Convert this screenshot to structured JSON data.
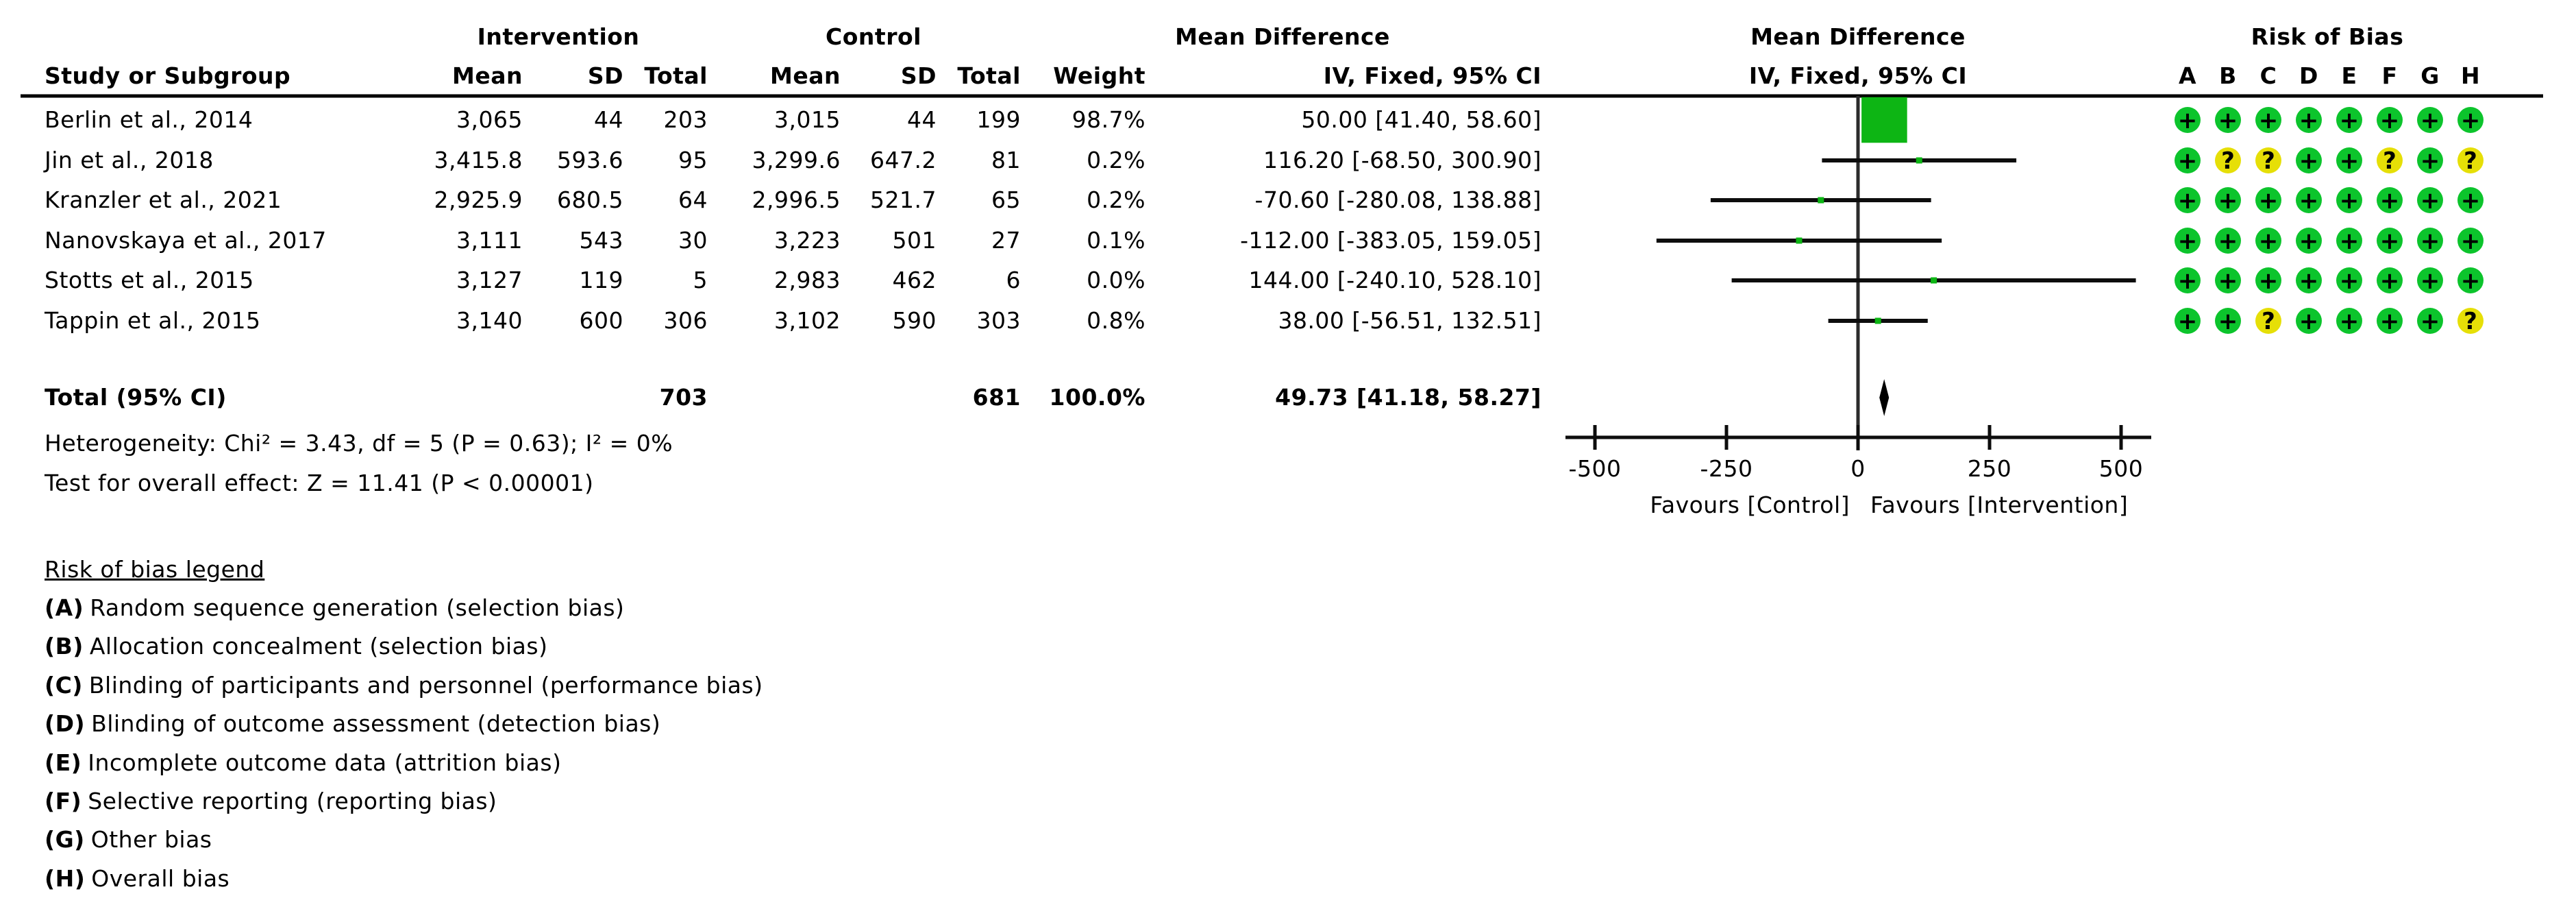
{
  "colors": {
    "plot_green": "#0db514",
    "rob_green": "#0cc42c",
    "rob_yellow": "#e6df07",
    "line_black": "#0d0d0d",
    "zero_line_gray": "#2b2b2b",
    "text": "#000000"
  },
  "table": {
    "group_headers": [
      "Intervention",
      "Control",
      "Mean Difference",
      "Mean Difference",
      "Risk of Bias"
    ],
    "study_col_header": "Study or Subgroup",
    "col_header_labels": [
      "Mean",
      "SD",
      "Total",
      "Mean",
      "SD",
      "Total",
      "Weight",
      "IV, Fixed, 95% CI"
    ],
    "plot_col_header": "IV, Fixed, 95% CI",
    "rob_letters": [
      "A",
      "B",
      "C",
      "D",
      "E",
      "F",
      "G",
      "H"
    ],
    "rows": [
      {
        "name": "Berlin et al., 2014",
        "cells": [
          "3,065",
          "44",
          "203",
          "3,015",
          "44",
          "199",
          "98.7%",
          "50.00 [41.40, 58.60]"
        ],
        "rob": [
          "+",
          "+",
          "+",
          "+",
          "+",
          "+",
          "+",
          "+"
        ]
      },
      {
        "name": "Jin et al., 2018",
        "cells": [
          "3,415.8",
          "593.6",
          "95",
          "3,299.6",
          "647.2",
          "81",
          "0.2%",
          "116.20 [-68.50, 300.90]"
        ],
        "rob": [
          "+",
          "?",
          "?",
          "+",
          "+",
          "?",
          "+",
          "?"
        ]
      },
      {
        "name": "Kranzler et al., 2021",
        "cells": [
          "2,925.9",
          "680.5",
          "64",
          "2,996.5",
          "521.7",
          "65",
          "0.2%",
          "-70.60 [-280.08, 138.88]"
        ],
        "rob": [
          "+",
          "+",
          "+",
          "+",
          "+",
          "+",
          "+",
          "+"
        ]
      },
      {
        "name": "Nanovskaya et al., 2017",
        "cells": [
          "3,111",
          "543",
          "30",
          "3,223",
          "501",
          "27",
          "0.1%",
          "-112.00 [-383.05, 159.05]"
        ],
        "rob": [
          "+",
          "+",
          "+",
          "+",
          "+",
          "+",
          "+",
          "+"
        ]
      },
      {
        "name": "Stotts et al., 2015",
        "cells": [
          "3,127",
          "119",
          "5",
          "2,983",
          "462",
          "6",
          "0.0%",
          "144.00 [-240.10, 528.10]"
        ],
        "rob": [
          "+",
          "+",
          "+",
          "+",
          "+",
          "+",
          "+",
          "+"
        ]
      },
      {
        "name": "Tappin et al., 2015",
        "cells": [
          "3,140",
          "600",
          "306",
          "3,102",
          "590",
          "303",
          "0.8%",
          "38.00 [-56.51, 132.51]"
        ],
        "rob": [
          "+",
          "+",
          "?",
          "+",
          "+",
          "+",
          "+",
          "?"
        ]
      }
    ],
    "total_row": {
      "label": "Total (95% CI)",
      "i_total": "703",
      "c_total": "681",
      "weight": "100.0%",
      "ci_text": "49.73 [41.18, 58.27]"
    }
  },
  "footnotes": {
    "heterogeneity": "Heterogeneity: Chi² = 3.43, df = 5 (P = 0.63); I² = 0%",
    "overall_effect": "Test for overall effect: Z = 11.41 (P < 0.00001)"
  },
  "axis": {
    "tick_labels": [
      "-500",
      "-250",
      "0",
      "250",
      "500"
    ],
    "favours_left": "Favours [Control]",
    "favours_right": "Favours [Intervention]"
  },
  "legend": {
    "title": "Risk of bias legend",
    "items": [
      {
        "tag": "(A)",
        "text": "Random sequence generation (selection bias)"
      },
      {
        "tag": "(B)",
        "text": "Allocation concealment (selection bias)"
      },
      {
        "tag": "(C)",
        "text": "Blinding of participants and personnel (performance bias)"
      },
      {
        "tag": "(D)",
        "text": "Blinding of outcome assessment (detection bias)"
      },
      {
        "tag": "(E)",
        "text": "Incomplete outcome data (attrition bias)"
      },
      {
        "tag": "(F)",
        "text": "Selective reporting (reporting bias)"
      },
      {
        "tag": "(G)",
        "text": "Other bias"
      },
      {
        "tag": "(H)",
        "text": "Overall bias"
      }
    ]
  },
  "chart_data": {
    "type": "scatter",
    "subtype": "forest_plot",
    "title": "Mean Difference  IV, Fixed, 95% CI",
    "x": {
      "ticks": [
        -500,
        -250,
        0,
        250,
        500
      ],
      "range": [
        -556,
        557
      ],
      "label_left": "Favours [Control]",
      "label_right": "Favours [Intervention]"
    },
    "studies": [
      {
        "name": "Berlin et al., 2014",
        "md": 50.0,
        "ci": [
          41.4,
          58.6
        ],
        "weight_pct": 98.7
      },
      {
        "name": "Jin et al., 2018",
        "md": 116.2,
        "ci": [
          -68.5,
          300.9
        ],
        "weight_pct": 0.2
      },
      {
        "name": "Kranzler et al., 2021",
        "md": -70.6,
        "ci": [
          -280.08,
          138.88
        ],
        "weight_pct": 0.2
      },
      {
        "name": "Nanovskaya et al., 2017",
        "md": -112.0,
        "ci": [
          -383.05,
          159.05
        ],
        "weight_pct": 0.1
      },
      {
        "name": "Stotts et al., 2015",
        "md": 144.0,
        "ci": [
          -240.1,
          528.1
        ],
        "weight_pct": 0.0
      },
      {
        "name": "Tappin et al., 2015",
        "md": 38.0,
        "ci": [
          -56.51,
          132.51
        ],
        "weight_pct": 0.8
      }
    ],
    "pooled": {
      "name": "Total (95% CI)",
      "md": 49.73,
      "ci": [
        41.18,
        58.27
      ],
      "weight_pct": 100.0
    },
    "heterogeneity": "Chi² = 3.43, df = 5 (P = 0.63); I² = 0%",
    "overall_effect": "Z = 11.41 (P < 0.00001)"
  }
}
